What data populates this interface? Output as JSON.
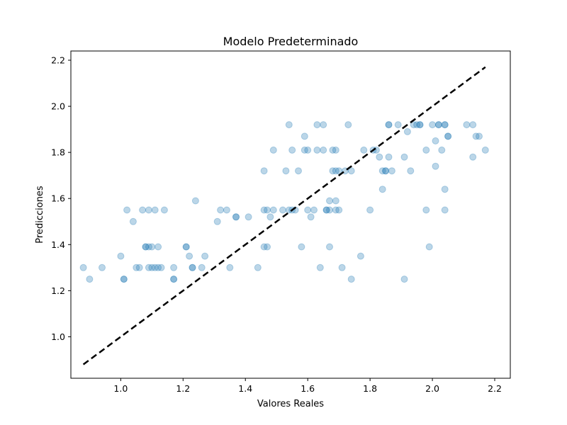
{
  "chart_data": {
    "type": "scatter",
    "title": "Modelo Predeterminado",
    "xlabel": "Valores Reales",
    "ylabel": "Predicciones",
    "xlim": [
      0.84,
      2.25
    ],
    "ylim": [
      0.82,
      2.24
    ],
    "xticks": [
      "1.0",
      "1.2",
      "1.4",
      "1.6",
      "1.8",
      "2.0",
      "2.2"
    ],
    "yticks": [
      "1.0",
      "1.2",
      "1.4",
      "1.6",
      "1.8",
      "2.0",
      "2.2"
    ],
    "grid": false,
    "point_color": "#1f77b4",
    "point_alpha": 0.3,
    "reference_line": {
      "style": "dashed",
      "color": "#000000",
      "from": [
        0.88,
        0.88
      ],
      "to": [
        2.17,
        2.17
      ]
    },
    "points": [
      [
        0.88,
        1.3
      ],
      [
        0.9,
        1.25
      ],
      [
        0.94,
        1.3
      ],
      [
        1.0,
        1.35
      ],
      [
        1.01,
        1.25
      ],
      [
        1.01,
        1.25
      ],
      [
        1.02,
        1.55
      ],
      [
        1.04,
        1.5
      ],
      [
        1.05,
        1.3
      ],
      [
        1.06,
        1.3
      ],
      [
        1.07,
        1.55
      ],
      [
        1.08,
        1.39
      ],
      [
        1.08,
        1.39
      ],
      [
        1.09,
        1.55
      ],
      [
        1.09,
        1.3
      ],
      [
        1.09,
        1.39
      ],
      [
        1.1,
        1.3
      ],
      [
        1.1,
        1.39
      ],
      [
        1.11,
        1.55
      ],
      [
        1.11,
        1.3
      ],
      [
        1.12,
        1.39
      ],
      [
        1.12,
        1.3
      ],
      [
        1.13,
        1.3
      ],
      [
        1.14,
        1.55
      ],
      [
        1.17,
        1.3
      ],
      [
        1.17,
        1.25
      ],
      [
        1.17,
        1.25
      ],
      [
        1.21,
        1.39
      ],
      [
        1.21,
        1.39
      ],
      [
        1.22,
        1.35
      ],
      [
        1.23,
        1.3
      ],
      [
        1.23,
        1.3
      ],
      [
        1.24,
        1.59
      ],
      [
        1.26,
        1.3
      ],
      [
        1.27,
        1.35
      ],
      [
        1.31,
        1.5
      ],
      [
        1.32,
        1.55
      ],
      [
        1.34,
        1.55
      ],
      [
        1.35,
        1.3
      ],
      [
        1.37,
        1.52
      ],
      [
        1.37,
        1.52
      ],
      [
        1.41,
        1.52
      ],
      [
        1.44,
        1.3
      ],
      [
        1.46,
        1.55
      ],
      [
        1.46,
        1.72
      ],
      [
        1.46,
        1.39
      ],
      [
        1.47,
        1.39
      ],
      [
        1.47,
        1.55
      ],
      [
        1.48,
        1.52
      ],
      [
        1.49,
        1.55
      ],
      [
        1.49,
        1.81
      ],
      [
        1.52,
        1.55
      ],
      [
        1.53,
        1.72
      ],
      [
        1.54,
        1.92
      ],
      [
        1.54,
        1.55
      ],
      [
        1.55,
        1.81
      ],
      [
        1.55,
        1.55
      ],
      [
        1.56,
        1.55
      ],
      [
        1.57,
        1.72
      ],
      [
        1.58,
        1.39
      ],
      [
        1.59,
        1.81
      ],
      [
        1.59,
        1.87
      ],
      [
        1.6,
        1.81
      ],
      [
        1.6,
        1.55
      ],
      [
        1.61,
        1.52
      ],
      [
        1.62,
        1.55
      ],
      [
        1.63,
        1.81
      ],
      [
        1.63,
        1.92
      ],
      [
        1.64,
        1.3
      ],
      [
        1.65,
        1.92
      ],
      [
        1.65,
        1.81
      ],
      [
        1.66,
        1.55
      ],
      [
        1.66,
        1.55
      ],
      [
        1.67,
        1.55
      ],
      [
        1.67,
        1.39
      ],
      [
        1.67,
        1.59
      ],
      [
        1.68,
        1.72
      ],
      [
        1.68,
        1.81
      ],
      [
        1.69,
        1.81
      ],
      [
        1.69,
        1.72
      ],
      [
        1.69,
        1.55
      ],
      [
        1.69,
        1.59
      ],
      [
        1.7,
        1.72
      ],
      [
        1.7,
        1.55
      ],
      [
        1.71,
        1.3
      ],
      [
        1.72,
        1.72
      ],
      [
        1.73,
        1.92
      ],
      [
        1.74,
        1.72
      ],
      [
        1.74,
        1.25
      ],
      [
        1.77,
        1.35
      ],
      [
        1.78,
        1.81
      ],
      [
        1.8,
        1.55
      ],
      [
        1.81,
        1.81
      ],
      [
        1.82,
        1.81
      ],
      [
        1.83,
        1.78
      ],
      [
        1.84,
        1.64
      ],
      [
        1.84,
        1.72
      ],
      [
        1.85,
        1.72
      ],
      [
        1.85,
        1.72
      ],
      [
        1.86,
        1.78
      ],
      [
        1.86,
        1.92
      ],
      [
        1.86,
        1.92
      ],
      [
        1.87,
        1.72
      ],
      [
        1.89,
        1.92
      ],
      [
        1.91,
        1.25
      ],
      [
        1.91,
        1.78
      ],
      [
        1.92,
        1.89
      ],
      [
        1.93,
        1.72
      ],
      [
        1.94,
        1.92
      ],
      [
        1.95,
        1.92
      ],
      [
        1.96,
        1.92
      ],
      [
        1.96,
        1.92
      ],
      [
        1.98,
        1.55
      ],
      [
        1.98,
        1.81
      ],
      [
        1.99,
        1.39
      ],
      [
        2.0,
        1.92
      ],
      [
        2.01,
        1.85
      ],
      [
        2.01,
        1.74
      ],
      [
        2.02,
        1.92
      ],
      [
        2.02,
        1.92
      ],
      [
        2.03,
        1.81
      ],
      [
        2.04,
        1.92
      ],
      [
        2.04,
        1.92
      ],
      [
        2.04,
        1.55
      ],
      [
        2.04,
        1.64
      ],
      [
        2.05,
        1.87
      ],
      [
        2.05,
        1.87
      ],
      [
        2.11,
        1.92
      ],
      [
        2.13,
        1.92
      ],
      [
        2.13,
        1.78
      ],
      [
        2.14,
        1.87
      ],
      [
        2.15,
        1.87
      ],
      [
        2.17,
        1.81
      ]
    ]
  }
}
